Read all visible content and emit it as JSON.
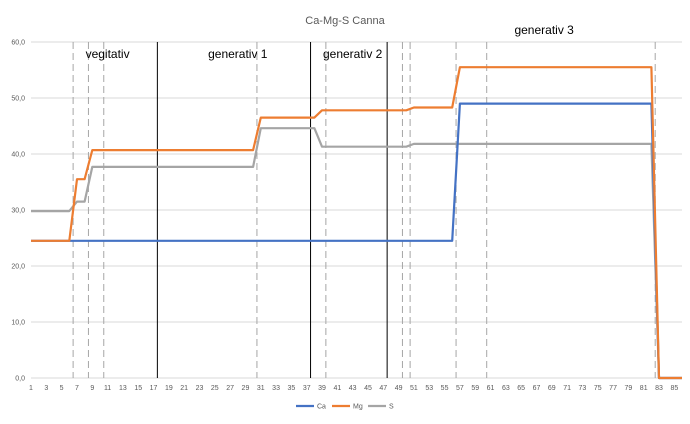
{
  "chart_data": {
    "type": "line",
    "title": "Ca-Mg-S Canna",
    "xlabel": "",
    "ylabel": "",
    "ylim": [
      0,
      60
    ],
    "ytick_labels": [
      "0,0",
      "10,0",
      "20,0",
      "30,0",
      "40,0",
      "50,0",
      "60,0"
    ],
    "ytick_values": [
      0,
      10,
      20,
      30,
      40,
      50,
      60
    ],
    "xlim": [
      1,
      86
    ],
    "xtick_step": 2,
    "grid": "horizontal",
    "legend_position": "bottom",
    "phase_labels": [
      {
        "text": "vegitativ",
        "x": 11
      },
      {
        "text": "generativ 1",
        "x": 28
      },
      {
        "text": "generativ 2",
        "x": 43
      },
      {
        "text": "generativ 3",
        "x": 68
      }
    ],
    "solid_vlines": [
      17.5,
      37.5,
      47.5
    ],
    "dashed_vlines": [
      6.5,
      8.5,
      10.5,
      30.5,
      39.5,
      49.5,
      50.5,
      56.5,
      60.5,
      82.5
    ],
    "series": [
      {
        "name": "Ca",
        "color": "#4472C4",
        "points": [
          [
            1,
            24.5
          ],
          [
            56,
            24.5
          ],
          [
            57,
            49
          ],
          [
            82,
            49
          ],
          [
            83,
            0
          ],
          [
            86,
            0
          ]
        ]
      },
      {
        "name": "Mg",
        "color": "#ED7D31",
        "points": [
          [
            1,
            24.5
          ],
          [
            6,
            24.5
          ],
          [
            7,
            35.5
          ],
          [
            8,
            35.5
          ],
          [
            9,
            40.7
          ],
          [
            30,
            40.7
          ],
          [
            31,
            46.5
          ],
          [
            38,
            46.5
          ],
          [
            39,
            47.8
          ],
          [
            50,
            47.8
          ],
          [
            51,
            48.3
          ],
          [
            56,
            48.3
          ],
          [
            57,
            55.5
          ],
          [
            82,
            55.5
          ],
          [
            83,
            0
          ],
          [
            86,
            0
          ]
        ]
      },
      {
        "name": "S",
        "color": "#A5A5A5",
        "points": [
          [
            1,
            29.8
          ],
          [
            6,
            29.8
          ],
          [
            7,
            31.5
          ],
          [
            8,
            31.5
          ],
          [
            9,
            37.7
          ],
          [
            30,
            37.7
          ],
          [
            31,
            44.6
          ],
          [
            38,
            44.6
          ],
          [
            39,
            41.3
          ],
          [
            50,
            41.3
          ],
          [
            51,
            41.8
          ],
          [
            82,
            41.8
          ],
          [
            83,
            0
          ],
          [
            86,
            0
          ]
        ]
      }
    ]
  }
}
